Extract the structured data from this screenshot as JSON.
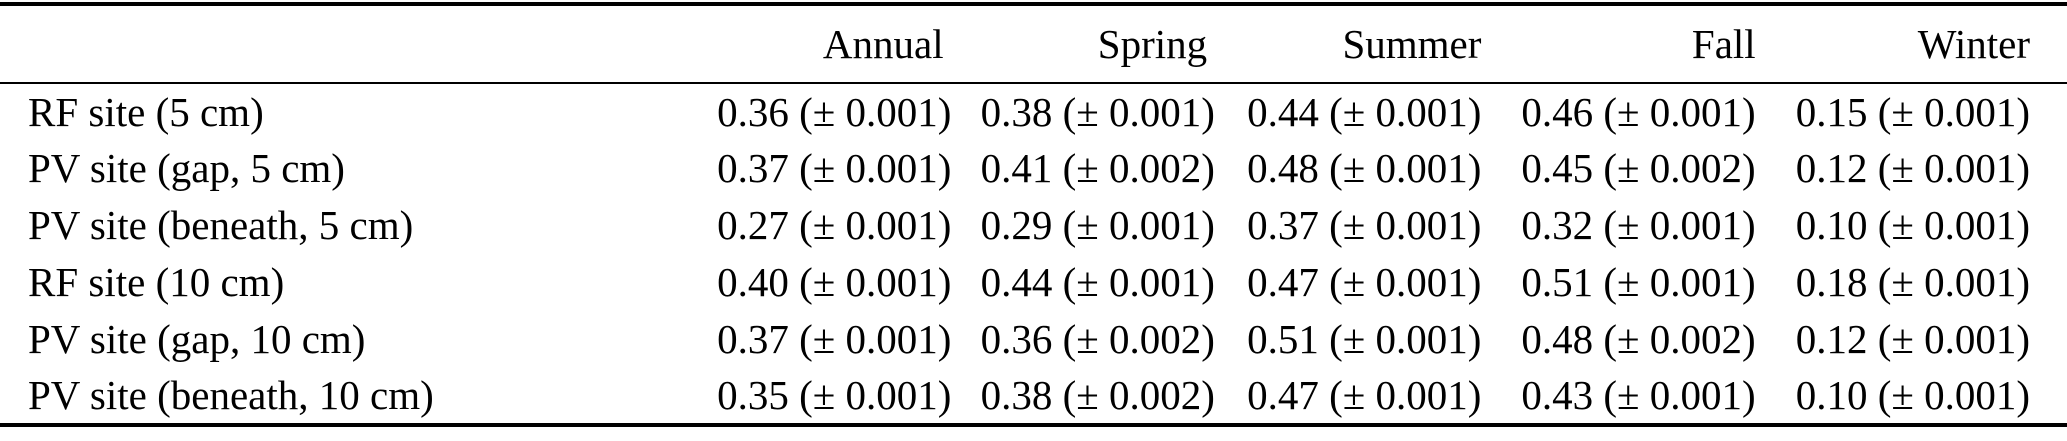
{
  "table": {
    "corner_label": "",
    "columns": [
      "Annual",
      "Spring",
      "Summer",
      "Fall",
      "Winter"
    ],
    "rows": [
      {
        "label": "RF site (5 cm)",
        "values": [
          "0.36 (± 0.001)",
          "0.38 (± 0.001)",
          "0.44 (± 0.001)",
          "0.46 (± 0.001)",
          "0.15 (± 0.001)"
        ]
      },
      {
        "label": "PV site (gap, 5 cm)",
        "values": [
          "0.37 (± 0.001)",
          "0.41 (± 0.002)",
          "0.48 (± 0.001)",
          "0.45 (± 0.002)",
          "0.12 (± 0.001)"
        ]
      },
      {
        "label": "PV site (beneath, 5 cm)",
        "values": [
          "0.27 (± 0.001)",
          "0.29 (± 0.001)",
          "0.37 (± 0.001)",
          "0.32 (± 0.001)",
          "0.10 (± 0.001)"
        ]
      },
      {
        "label": "RF site (10 cm)",
        "values": [
          "0.40 (± 0.001)",
          "0.44 (± 0.001)",
          "0.47 (± 0.001)",
          "0.51 (± 0.001)",
          "0.18 (± 0.001)"
        ]
      },
      {
        "label": "PV site (gap, 10 cm)",
        "values": [
          "0.37 (± 0.001)",
          "0.36 (± 0.002)",
          "0.51 (± 0.001)",
          "0.48 (± 0.002)",
          "0.12 (± 0.001)"
        ]
      },
      {
        "label": "PV site (beneath, 10 cm)",
        "values": [
          "0.35 (± 0.001)",
          "0.38 (± 0.002)",
          "0.47 (± 0.001)",
          "0.43 (± 0.001)",
          "0.10 (± 0.001)"
        ]
      }
    ]
  },
  "colors": {
    "text": "#000000",
    "background": "#ffffff",
    "rule": "#000000"
  }
}
